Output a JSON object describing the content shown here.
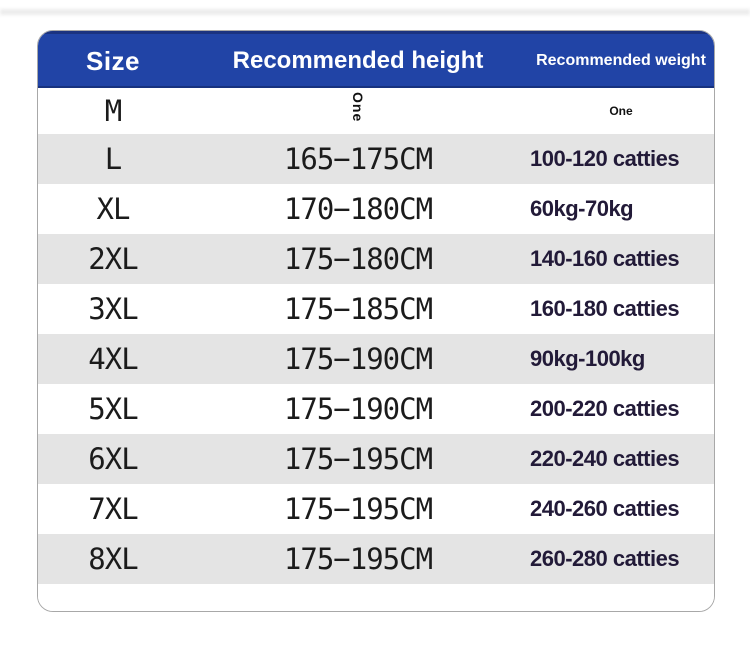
{
  "page": {
    "title": "Size chart"
  },
  "colors": {
    "header_bg": "#2144a6",
    "header_top_edge": "#1b3380",
    "row_alt_bg": "#e4e4e4",
    "row_bg": "#ffffff",
    "body_text": "#1b1b1b",
    "weight_text": "#221a38",
    "card_border": "#a8a8a8",
    "header_text": "#ffffff"
  },
  "header": {
    "columns": [
      "Size",
      "Recommended height",
      "Recommended weight"
    ]
  },
  "rows": [
    {
      "size": "M",
      "height_note": "One",
      "weight_note": "One"
    },
    {
      "size": "L",
      "height": "165−175CM",
      "weight": "100-120 catties"
    },
    {
      "size": "XL",
      "height": "170−180CM",
      "weight": "60kg-70kg"
    },
    {
      "size": "2XL",
      "height": "175−180CM",
      "weight": "140-160 catties"
    },
    {
      "size": "3XL",
      "height": "175−185CM",
      "weight": "160-180 catties"
    },
    {
      "size": "4XL",
      "height": "175−190CM",
      "weight": "90kg-100kg"
    },
    {
      "size": "5XL",
      "height": "175−190CM",
      "weight": "200-220 catties"
    },
    {
      "size": "6XL",
      "height": "175−195CM",
      "weight": "220-240 catties"
    },
    {
      "size": "7XL",
      "height": "175−195CM",
      "weight": "240-260 catties"
    },
    {
      "size": "8XL",
      "height": "175−195CM",
      "weight": "260-280 catties"
    }
  ]
}
